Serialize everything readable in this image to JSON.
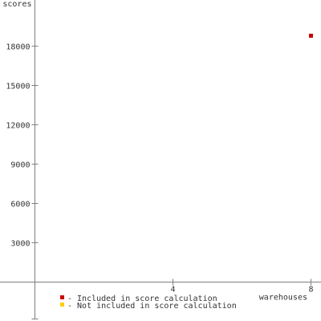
{
  "chart_data": {
    "type": "scatter",
    "title": "",
    "xlabel": "warehouses",
    "ylabel": "scores",
    "xlim": [
      -1,
      8.3
    ],
    "ylim": [
      -3000,
      21500
    ],
    "x_ticks": [
      4,
      8
    ],
    "y_ticks": [
      3000,
      6000,
      9000,
      12000,
      15000,
      18000
    ],
    "grid": false,
    "legend_position": "bottom-left",
    "series": [
      {
        "name": "- Included in score calculation",
        "color": "#cc0000",
        "points": [
          {
            "x": 8,
            "y": 18800
          }
        ]
      },
      {
        "name": "- Not included in score calculation",
        "color": "#ffcc00",
        "points": []
      }
    ]
  }
}
